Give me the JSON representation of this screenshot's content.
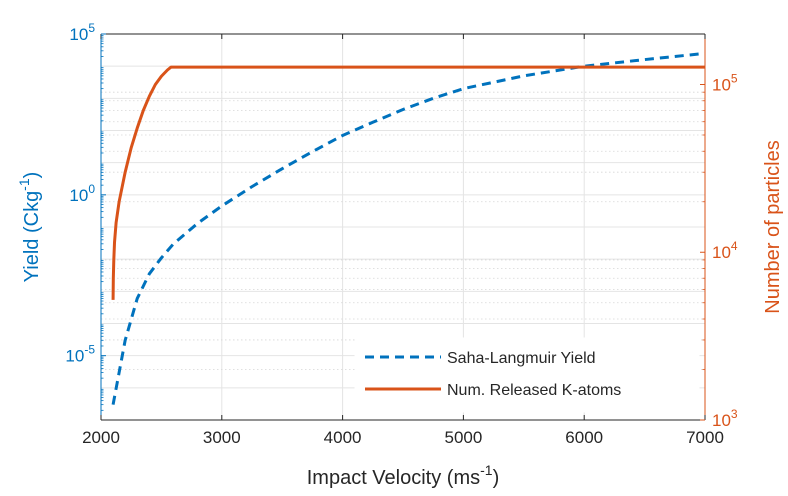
{
  "chart_data": {
    "type": "line",
    "xlabel_base": "Impact Velocity (ms",
    "xlabel_sup": "-1",
    "xlabel_tail": ")",
    "ylabel_left_base": "Yield (Ckg",
    "ylabel_left_sup": "-1",
    "ylabel_left_tail": ")",
    "ylabel_right": "Number of particles",
    "xlim": [
      2000,
      7000
    ],
    "x_ticks": [
      2000,
      3000,
      4000,
      5000,
      6000,
      7000
    ],
    "x_tick_labels": [
      "2000",
      "3000",
      "4000",
      "5000",
      "6000",
      "7000"
    ],
    "y_left_scale": "log",
    "y_left_lim": [
      1e-07,
      100000.0
    ],
    "y_left_ticks": [
      {
        "value": 100000.0,
        "base": "10",
        "exp": "5"
      },
      {
        "value": 1,
        "base": "10",
        "exp": "0"
      },
      {
        "value": 1e-05,
        "base": "10",
        "exp": "-5"
      }
    ],
    "y_right_scale": "log",
    "y_right_lim": [
      1000,
      200000
    ],
    "y_right_ticks": [
      {
        "value": 1000,
        "base": "10",
        "exp": "3"
      },
      {
        "value": 10000,
        "base": "10",
        "exp": "4"
      },
      {
        "value": 100000,
        "base": "10",
        "exp": "5"
      }
    ],
    "grid": true,
    "legend_position": "bottom-right",
    "series": [
      {
        "name": "Saha-Langmuir Yield",
        "axis": "left",
        "style": "dashed",
        "color": "#0072BD",
        "x": [
          2100,
          2150,
          2200,
          2300,
          2400,
          2500,
          2600,
          2800,
          3000,
          3250,
          3500,
          3750,
          4000,
          4250,
          4500,
          4750,
          5000,
          5500,
          6000,
          6500,
          7000
        ],
        "y": [
          3e-07,
          3e-06,
          3e-05,
          0.0006,
          0.0035,
          0.011,
          0.03,
          0.13,
          0.45,
          1.8,
          6.5,
          22,
          70,
          180,
          450,
          1000,
          2000,
          5000,
          10000,
          16000,
          25000
        ]
      },
      {
        "name": "Num. Released K-atoms",
        "axis": "right",
        "style": "solid",
        "color": "#D95319",
        "x": [
          2100,
          2102,
          2106,
          2112,
          2125,
          2150,
          2200,
          2250,
          2300,
          2350,
          2400,
          2450,
          2500,
          2550,
          2580,
          3000,
          4000,
          5000,
          6000,
          7000
        ],
        "y": [
          5200,
          7000,
          9000,
          11500,
          15000,
          20000,
          30000,
          42000,
          55000,
          70000,
          85000,
          100000,
          112000,
          122000,
          127000,
          127000,
          127000,
          127000,
          127000,
          127000
        ]
      }
    ],
    "colors": {
      "left_axis": "#0072BD",
      "right_axis": "#D95319",
      "grid": "#e4e4e4",
      "frame": "#262626"
    }
  }
}
